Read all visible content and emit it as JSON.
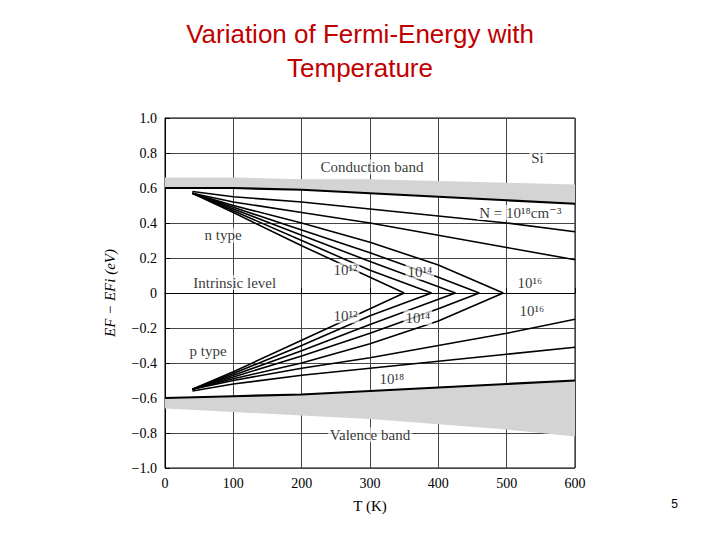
{
  "chart_data": {
    "type": "line",
    "title": "Variation of Fermi-Energy with\nTemperature",
    "x_label": "T (K)",
    "y_label": "EF − EFi (eV)",
    "footer": "5",
    "xlim": [
      0,
      600
    ],
    "xticks": [
      0,
      100,
      200,
      300,
      400,
      500,
      600
    ],
    "ylim": [
      -1,
      1
    ],
    "yticks": [
      {
        "value": -1,
        "label": "−1.0"
      },
      {
        "value": -0.8,
        "label": "−0.8"
      },
      {
        "value": -0.6,
        "label": "−0.6"
      },
      {
        "value": -0.4,
        "label": "−0.4"
      },
      {
        "value": -0.2,
        "label": "−0.2"
      },
      0,
      0.2,
      0.4,
      0.6,
      0.8,
      {
        "value": 1,
        "label": "1.0"
      }
    ],
    "grid": true,
    "color": "#000000",
    "line_style": "solid",
    "bands": [
      {
        "x": [
          0,
          100,
          200,
          300,
          400,
          500,
          600
        ],
        "edge": [
          0.6,
          0.6,
          0.59,
          0.57,
          0.55,
          0.53,
          0.51
        ],
        "outer": [
          0.66,
          0.66,
          0.65,
          0.65,
          0.64,
          0.63,
          0.62
        ]
      },
      {
        "x": [
          0,
          100,
          200,
          300,
          400,
          500,
          600
        ],
        "edge": [
          -0.6,
          -0.59,
          -0.58,
          -0.56,
          -0.54,
          -0.52,
          -0.5
        ],
        "outer": [
          -0.66,
          -0.68,
          -0.7,
          -0.72,
          -0.75,
          -0.78,
          -0.82
        ]
      }
    ],
    "series": [
      {
        "x": [
          40,
          100,
          200,
          300,
          350
        ],
        "values": [
          0.57,
          0.46,
          0.27,
          0.09,
          0.0
        ]
      },
      {
        "x": [
          40,
          100,
          200,
          300,
          390
        ],
        "values": [
          0.57,
          0.47,
          0.3,
          0.13,
          0.0
        ]
      },
      {
        "x": [
          40,
          100,
          200,
          300,
          425
        ],
        "values": [
          0.57,
          0.48,
          0.33,
          0.18,
          0.0
        ]
      },
      {
        "x": [
          40,
          100,
          200,
          300,
          400,
          460
        ],
        "values": [
          0.57,
          0.49,
          0.36,
          0.23,
          0.09,
          0.0
        ]
      },
      {
        "x": [
          40,
          100,
          200,
          300,
          400,
          495
        ],
        "values": [
          0.57,
          0.5,
          0.4,
          0.29,
          0.16,
          0.0
        ]
      },
      {
        "x": [
          40,
          100,
          200,
          300,
          400,
          500,
          600
        ],
        "values": [
          0.57,
          0.52,
          0.46,
          0.4,
          0.33,
          0.26,
          0.19
        ]
      },
      {
        "x": [
          40,
          100,
          200,
          300,
          400,
          500,
          600
        ],
        "values": [
          0.58,
          0.55,
          0.52,
          0.48,
          0.44,
          0.4,
          0.35
        ]
      },
      {
        "x": [
          40,
          100,
          200,
          300,
          350
        ],
        "values": [
          -0.55,
          -0.45,
          -0.27,
          -0.09,
          0.0
        ]
      },
      {
        "x": [
          40,
          100,
          200,
          300,
          390
        ],
        "values": [
          -0.55,
          -0.46,
          -0.3,
          -0.13,
          0.0
        ]
      },
      {
        "x": [
          40,
          100,
          200,
          300,
          425
        ],
        "values": [
          -0.55,
          -0.47,
          -0.33,
          -0.18,
          0.0
        ]
      },
      {
        "x": [
          40,
          100,
          200,
          300,
          400,
          460
        ],
        "values": [
          -0.55,
          -0.48,
          -0.36,
          -0.23,
          -0.09,
          0.0
        ]
      },
      {
        "x": [
          40,
          100,
          200,
          300,
          400,
          495
        ],
        "values": [
          -0.55,
          -0.49,
          -0.4,
          -0.29,
          -0.16,
          0.0
        ]
      },
      {
        "x": [
          40,
          100,
          200,
          300,
          400,
          500,
          600
        ],
        "values": [
          -0.55,
          -0.5,
          -0.43,
          -0.37,
          -0.3,
          -0.23,
          -0.15
        ]
      },
      {
        "x": [
          40,
          100,
          200,
          300,
          400,
          500,
          600
        ],
        "values": [
          -0.56,
          -0.52,
          -0.47,
          -0.43,
          -0.39,
          -0.35,
          -0.31
        ]
      }
    ],
    "annotations": [
      {
        "text": "Si",
        "x": 545,
        "y": 0.77
      },
      {
        "text": "Conduction band",
        "x": 303,
        "y": 0.72
      },
      {
        "text": "N = 10¹⁸cm⁻³",
        "x": 520,
        "y": 0.46
      },
      {
        "text": "n type",
        "x": 85,
        "y": 0.33
      },
      {
        "text": "Intrinsic level",
        "x": 102,
        "y": 0.06
      },
      {
        "text": "10¹²",
        "x": 264,
        "y": 0.13
      },
      {
        "text": "10¹⁴",
        "x": 373,
        "y": 0.12
      },
      {
        "text": "10¹⁶",
        "x": 534,
        "y": 0.06
      },
      {
        "text": "10¹²",
        "x": 264,
        "y": -0.13
      },
      {
        "text": "10¹⁴",
        "x": 370,
        "y": -0.14
      },
      {
        "text": "10¹⁶",
        "x": 537,
        "y": -0.1
      },
      {
        "text": "p type",
        "x": 63,
        "y": -0.33
      },
      {
        "text": "10¹⁸",
        "x": 332,
        "y": -0.49
      },
      {
        "text": "Valence band",
        "x": 300,
        "y": -0.81
      }
    ]
  }
}
